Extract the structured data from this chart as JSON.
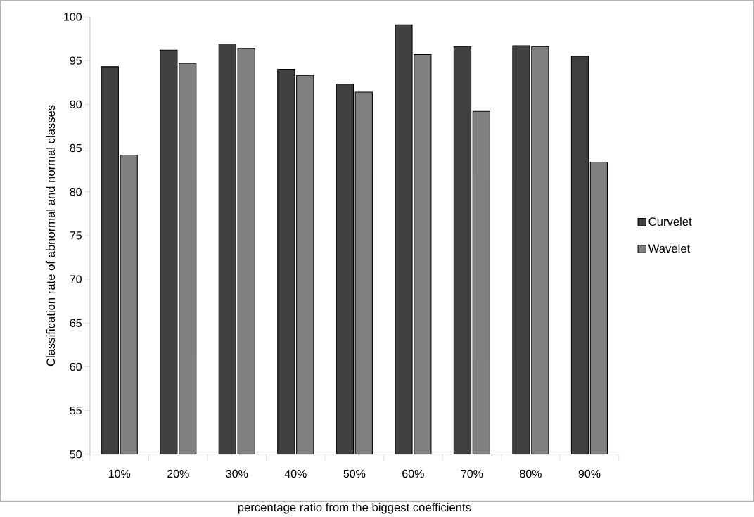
{
  "chart_data": {
    "type": "bar",
    "xlabel": "percentage ratio from the biggest coefficients",
    "ylabel": "Classification rate of abnormal and normal classes",
    "categories": [
      "10%",
      "20%",
      "30%",
      "40%",
      "50%",
      "60%",
      "70%",
      "80%",
      "90%"
    ],
    "series": [
      {
        "name": "Curvelet",
        "color": "#404040",
        "values": [
          94.3,
          96.2,
          96.9,
          94.0,
          92.3,
          99.1,
          96.6,
          96.7,
          95.5
        ]
      },
      {
        "name": "Wavelet",
        "color": "#808080",
        "values": [
          84.2,
          94.7,
          96.4,
          93.3,
          91.4,
          95.7,
          89.2,
          96.6,
          83.4
        ]
      }
    ],
    "ylim": [
      50,
      100
    ],
    "yticks": [
      50,
      55,
      60,
      65,
      70,
      75,
      80,
      85,
      90,
      95,
      100
    ],
    "legend": "right"
  }
}
